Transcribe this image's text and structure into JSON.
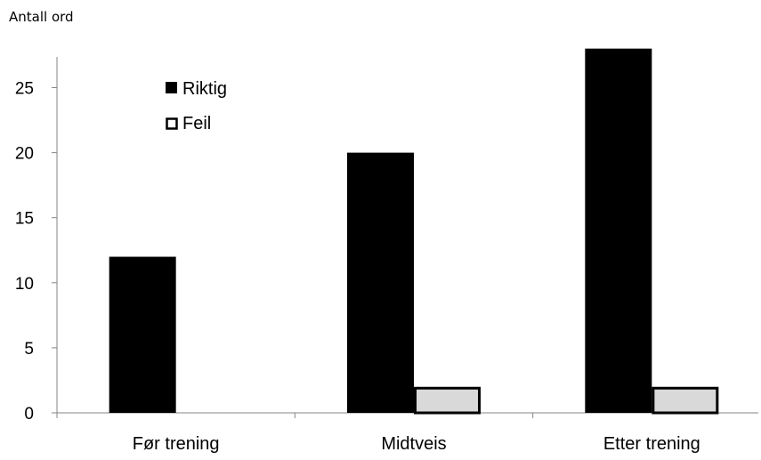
{
  "chart_data": {
    "type": "bar",
    "title": "",
    "ylabel": "Antall ord",
    "xlabel": "",
    "categories": [
      "Før trening",
      "Midtveis",
      "Etter trening"
    ],
    "series": [
      {
        "name": "Riktig",
        "values": [
          12,
          20,
          28
        ],
        "color": "#000000"
      },
      {
        "name": "Feil",
        "values": [
          0,
          2,
          2
        ],
        "color": "#d9d9d9"
      }
    ],
    "ylim": [
      0,
      28
    ],
    "yticks": [
      0,
      5,
      10,
      15,
      20,
      25
    ],
    "grid": false,
    "legend": "top-left"
  }
}
